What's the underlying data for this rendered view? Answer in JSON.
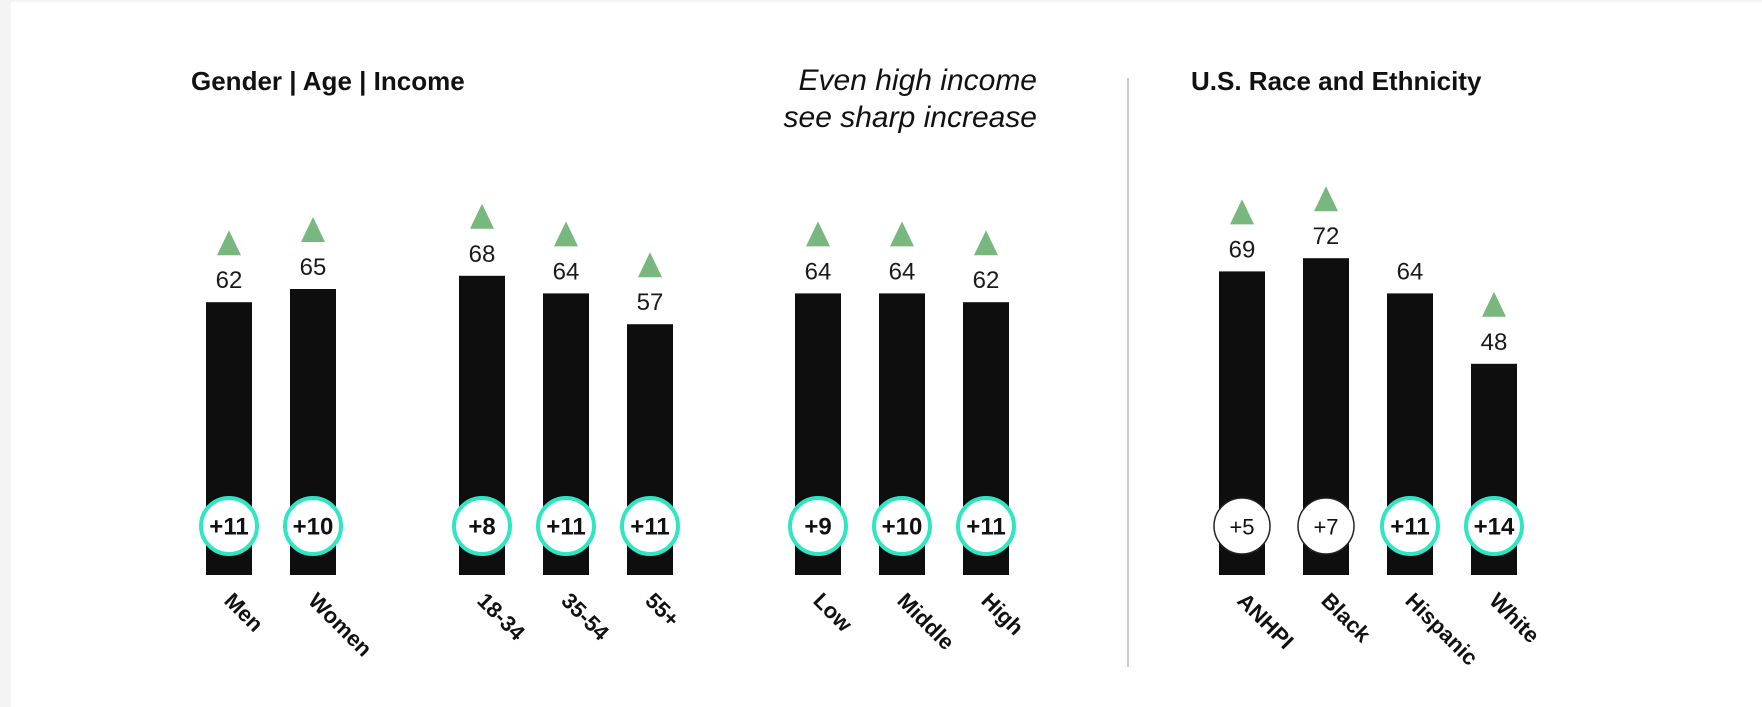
{
  "titles": {
    "left": "Gender | Age | Income",
    "right": "U.S. Race and Ethnicity"
  },
  "callout": {
    "line1": "Even high income",
    "line2": "see sharp increase"
  },
  "colors": {
    "bar": "#0e0e0e",
    "arrow": "#78b87f",
    "significant_ring": "#2ee6c2"
  },
  "chart_data": {
    "type": "bar",
    "ylim": [
      0,
      80
    ],
    "groups": [
      {
        "name": "Gender",
        "categories": [
          "Men",
          "Women"
        ],
        "values": [
          62,
          65
        ],
        "changes": [
          "+11",
          "+10"
        ],
        "significant": [
          true,
          true
        ],
        "up_arrow": [
          true,
          true
        ]
      },
      {
        "name": "Age",
        "categories": [
          "18-34",
          "35-54",
          "55+"
        ],
        "values": [
          68,
          64,
          57
        ],
        "changes": [
          "+8",
          "+11",
          "+11"
        ],
        "significant": [
          true,
          true,
          true
        ],
        "up_arrow": [
          true,
          true,
          true
        ]
      },
      {
        "name": "Income",
        "categories": [
          "Low",
          "Middle",
          "High"
        ],
        "values": [
          64,
          64,
          62
        ],
        "changes": [
          "+9",
          "+10",
          "+11"
        ],
        "significant": [
          true,
          true,
          true
        ],
        "up_arrow": [
          true,
          true,
          true
        ]
      },
      {
        "name": "Race and Ethnicity",
        "categories": [
          "ANHPI",
          "Black",
          "Hispanic",
          "White"
        ],
        "values": [
          69,
          72,
          64,
          48
        ],
        "changes": [
          "+5",
          "+7",
          "+11",
          "+14"
        ],
        "significant": [
          false,
          false,
          true,
          true
        ],
        "up_arrow": [
          true,
          true,
          false,
          true
        ]
      }
    ]
  }
}
